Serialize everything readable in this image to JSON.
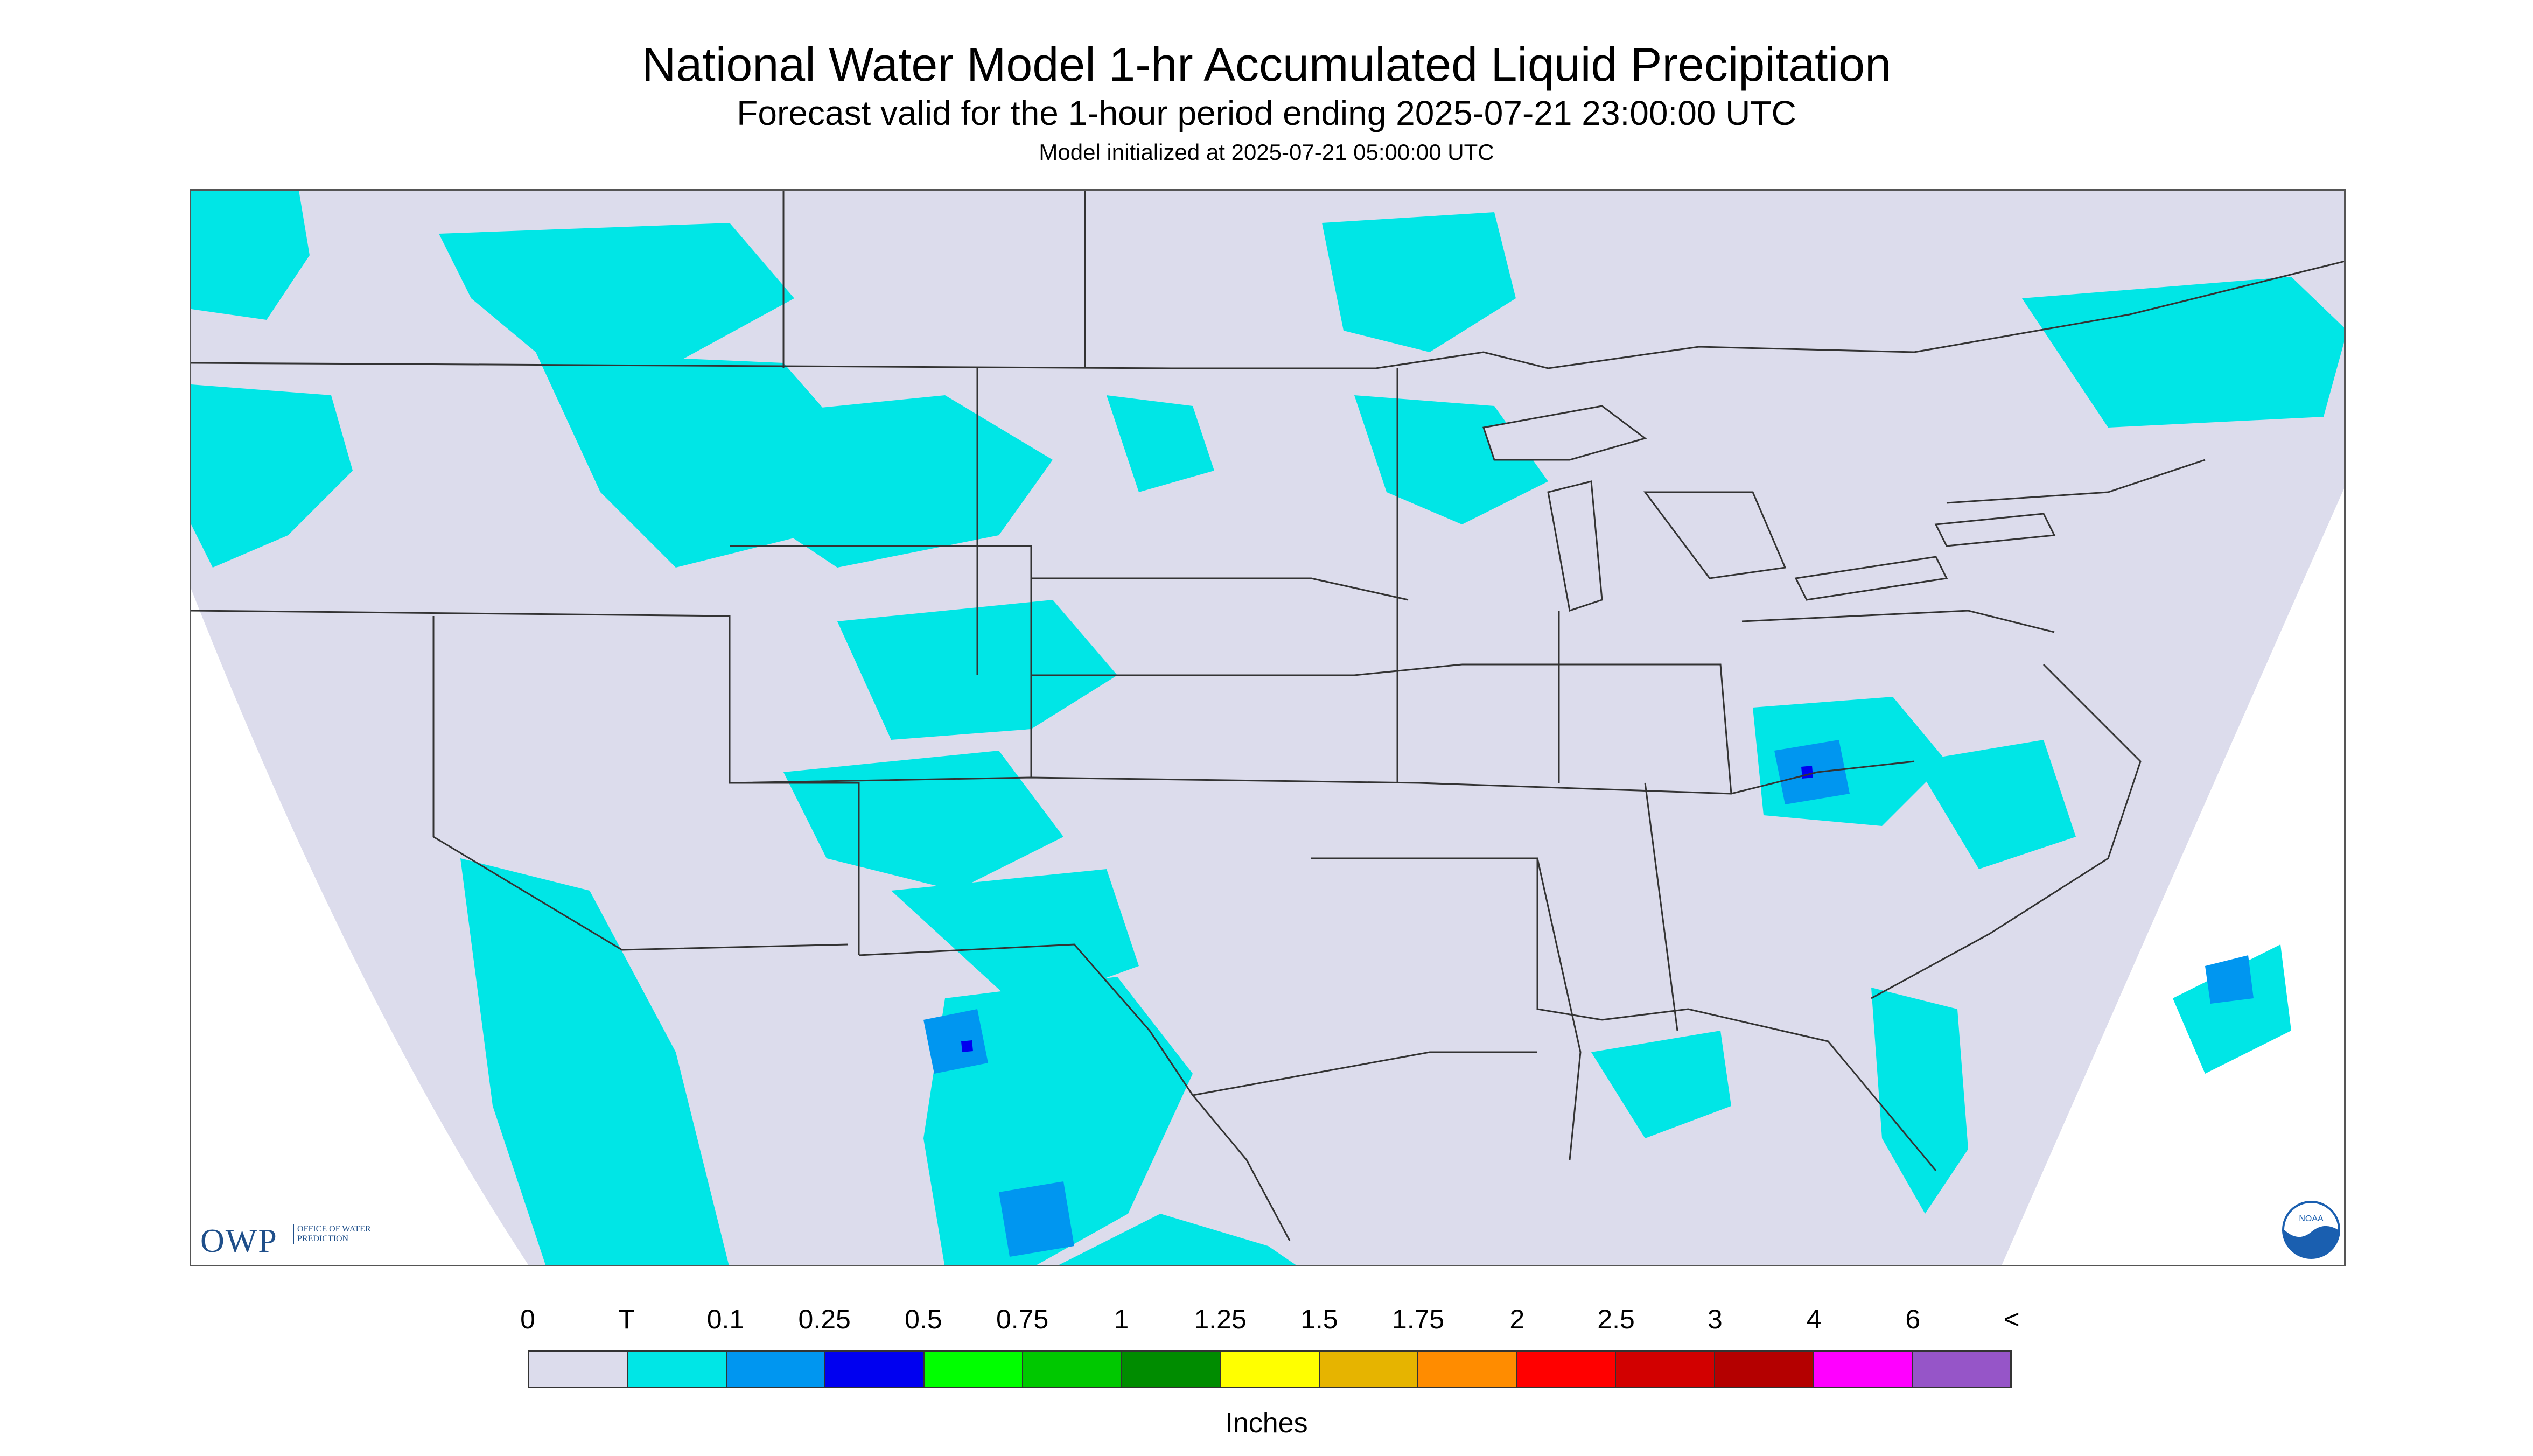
{
  "header": {
    "title": "National Water Model 1-hr Accumulated Liquid Precipitation",
    "subtitle": "Forecast valid for the 1-hour period ending 2025-07-21 23:00:00 UTC",
    "init": "Model initialized at 2025-07-21 05:00:00 UTC"
  },
  "logos": {
    "owp_text": "OWP",
    "owp_sub": "OFFICE OF WATER PREDICTION",
    "noaa_text": "NOAA"
  },
  "legend": {
    "units": "Inches",
    "labels": [
      "0",
      "T",
      "0.1",
      "0.25",
      "0.5",
      "0.75",
      "1",
      "1.25",
      "1.5",
      "1.75",
      "2",
      "2.5",
      "3",
      "4",
      "6",
      "<"
    ],
    "colors": [
      "#dcdcec",
      "#00e6e6",
      "#0096f0",
      "#0000f0",
      "#00ff00",
      "#00c800",
      "#008c00",
      "#ffff00",
      "#e6b400",
      "#ff8c00",
      "#ff0000",
      "#d20000",
      "#b40000",
      "#ff00ff",
      "#9655c8"
    ]
  },
  "map": {
    "background_color": "#dcdcec",
    "outside_color": "#ffffff",
    "border_color": "#555555"
  }
}
